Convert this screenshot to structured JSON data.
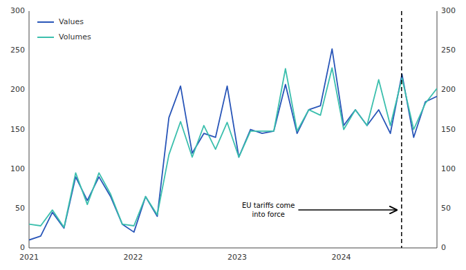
{
  "chart_data": {
    "type": "line",
    "x": [
      2021,
      2021.112,
      2021.224,
      2021.336,
      2021.448,
      2021.56,
      2021.672,
      2021.784,
      2021.896,
      2022.008,
      2022.12,
      2022.232,
      2022.344,
      2022.456,
      2022.568,
      2022.68,
      2022.792,
      2022.904,
      2023.016,
      2023.128,
      2023.24,
      2023.352,
      2023.464,
      2023.576,
      2023.688,
      2023.8,
      2023.912,
      2024.024,
      2024.136,
      2024.248,
      2024.36,
      2024.472,
      2024.584,
      2024.696,
      2024.808,
      2024.92
    ],
    "series": [
      {
        "name": "Values",
        "color": "#2855b8",
        "values": [
          10,
          15,
          45,
          25,
          90,
          60,
          90,
          65,
          30,
          20,
          65,
          40,
          165,
          205,
          120,
          145,
          140,
          205,
          115,
          150,
          145,
          148,
          207,
          145,
          175,
          180,
          252,
          155,
          175,
          155,
          175,
          145,
          220,
          140,
          185,
          192
        ]
      },
      {
        "name": "Volumes",
        "color": "#3bbfad",
        "values": [
          30,
          28,
          48,
          26,
          95,
          55,
          95,
          68,
          30,
          28,
          65,
          42,
          118,
          160,
          115,
          155,
          125,
          159,
          115,
          148,
          148,
          148,
          227,
          148,
          175,
          168,
          228,
          150,
          175,
          155,
          213,
          155,
          215,
          150,
          183,
          202
        ]
      }
    ],
    "xlim": [
      2021.0,
      2024.92
    ],
    "xticks": [
      2021,
      2022,
      2023,
      2024
    ],
    "ylim": [
      0,
      300
    ],
    "yticks": [
      0,
      50,
      100,
      150,
      200,
      250,
      300
    ],
    "y2lim": [
      0,
      300
    ],
    "y2ticks": [
      0,
      50,
      100,
      150,
      200,
      250,
      300
    ],
    "vline": {
      "x": 2024.58
    },
    "annotations": [
      {
        "text": "EU tariffs come\ninto force",
        "x": 2023.3,
        "y": 48,
        "arrow_x": 2024.53,
        "arrow_y": 48
      }
    ],
    "legend": "upper left",
    "grid": false
  }
}
